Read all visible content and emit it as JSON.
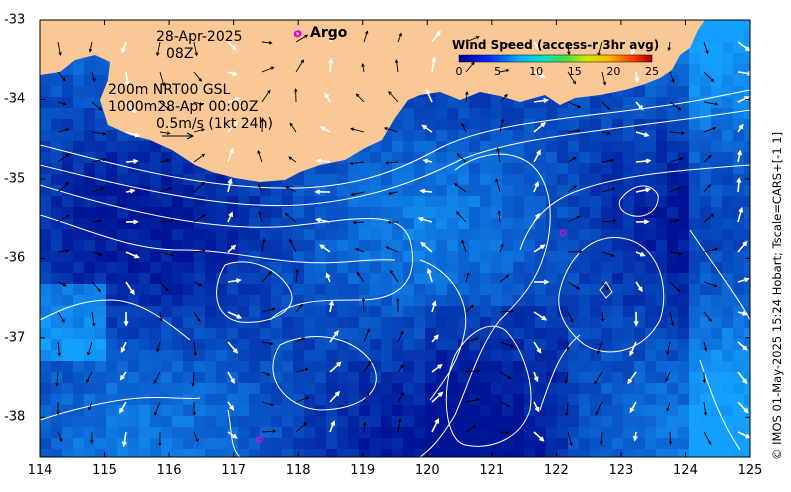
{
  "map": {
    "date": "28-Apr-2025",
    "hour": "08Z",
    "depth_line1": "200m  NRT00 GSL",
    "depth_line2": "1000m28-Apr 00:00Z",
    "scale_label": "0.5m/s (1kt 24h)",
    "argo_label": "Argo",
    "credit": "© IMOS 01-May-2025 15:24 Hobart; Tscale=CARS+[-1 1]",
    "x_ticks": [
      "114",
      "115",
      "116",
      "117",
      "118",
      "119",
      "120",
      "121",
      "122",
      "123",
      "124",
      "125"
    ],
    "y_ticks": [
      "-33",
      "-34",
      "-35",
      "-36",
      "-37",
      "-38"
    ],
    "x_range": [
      114,
      125
    ],
    "y_range": [
      -38.5,
      -33
    ],
    "argo_floats": [
      {
        "lon": 118.0,
        "lat": -33.17
      },
      {
        "lon": 122.1,
        "lat": -35.68
      },
      {
        "lon": 117.4,
        "lat": -38.28
      }
    ],
    "colors": {
      "land": "#fac896",
      "ocean": "#0a3cc8",
      "contour": "#ffffff",
      "argo": "#e000e0"
    }
  },
  "colorbar": {
    "title": "Wind Speed (access-r 3hr avg)",
    "tick_labels": [
      "0",
      "5",
      "10",
      "15",
      "20",
      "25"
    ],
    "range": [
      0,
      25
    ]
  }
}
